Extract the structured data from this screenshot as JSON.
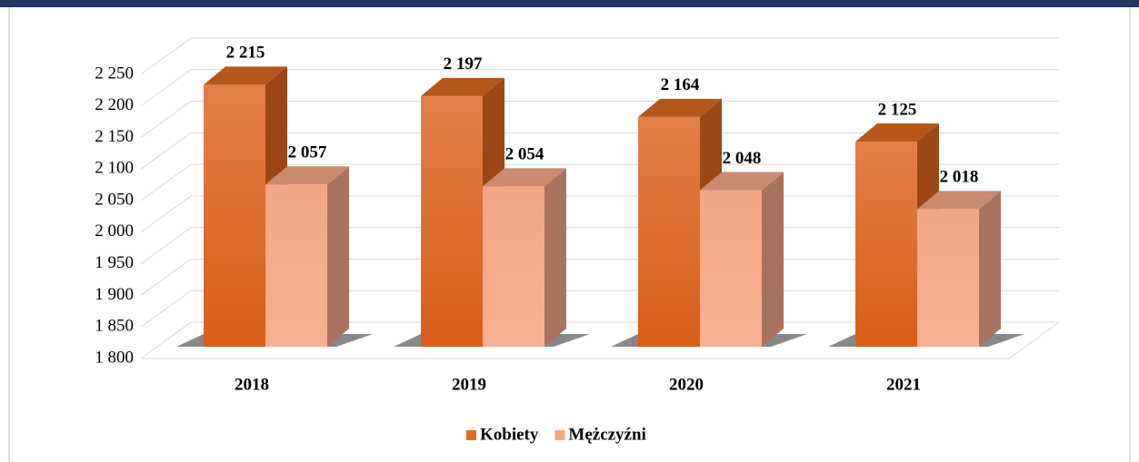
{
  "chart_data": {
    "type": "bar3d",
    "categories": [
      "2018",
      "2019",
      "2020",
      "2021"
    ],
    "series": [
      {
        "name": "Kobiety",
        "color": "#e06a20",
        "side": "#9c4716",
        "top": "#b5561b",
        "values": [
          2215,
          2197,
          2164,
          2125
        ],
        "value_labels": [
          "2 215",
          "2 197",
          "2 164",
          "2 125"
        ]
      },
      {
        "name": "Mężczyźni",
        "color": "#f5a582",
        "side": "#a8735e",
        "top": "#c98a70",
        "values": [
          2057,
          2054,
          2048,
          2018
        ],
        "value_labels": [
          "2 057",
          "2 054",
          "2 048",
          "2 018"
        ]
      }
    ],
    "ylim": [
      1800,
      2250
    ],
    "yticks": [
      {
        "value": 1800,
        "label": "1 800"
      },
      {
        "value": 1850,
        "label": "1 850"
      },
      {
        "value": 1900,
        "label": "1 900"
      },
      {
        "value": 1950,
        "label": "1 950"
      },
      {
        "value": 2000,
        "label": "2 000"
      },
      {
        "value": 2050,
        "label": "2 050"
      },
      {
        "value": 2100,
        "label": "2 100"
      },
      {
        "value": 2150,
        "label": "2 150"
      },
      {
        "value": 2200,
        "label": "2 200"
      },
      {
        "value": 2250,
        "label": "2 250"
      }
    ],
    "grid": true,
    "legend": "bottom"
  }
}
